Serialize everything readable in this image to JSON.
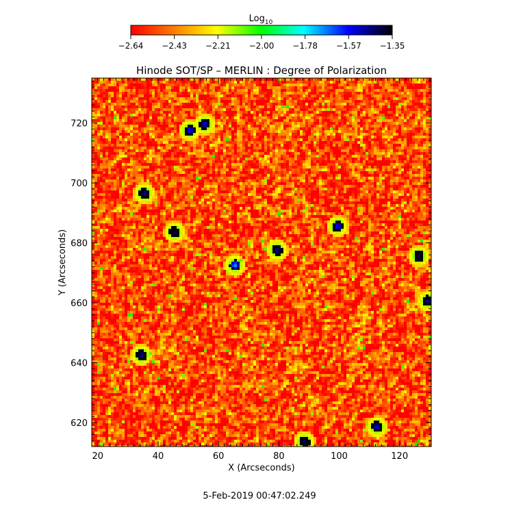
{
  "chart_data": {
    "type": "heatmap",
    "title": "Hinode SOT/SP – MERLIN : Degree of Polarization",
    "xlabel": "X (Arcseconds)",
    "ylabel": "Y (Arcseconds)",
    "footer": "5-Feb-2019 00:47:02.249",
    "xlim": [
      18,
      130.5
    ],
    "ylim": [
      612,
      735
    ],
    "xticks": [
      20,
      40,
      60,
      80,
      100,
      120
    ],
    "yticks": [
      620,
      640,
      660,
      680,
      700,
      720
    ],
    "colorbar": {
      "label": "Log",
      "label_sub": "10",
      "range": [
        -2.64,
        -1.35
      ],
      "ticks": [
        "-2.64",
        "-2.43",
        "-2.21",
        "-2.00",
        "-1.78",
        "-1.57",
        "-1.35"
      ],
      "colors": [
        "#ff0000",
        "#ff8000",
        "#ffff00",
        "#00ff00",
        "#00ffff",
        "#0000ff",
        "#000000"
      ]
    },
    "field": {
      "background_level": -2.52,
      "noise_amplitude": 0.22,
      "strong_features": [
        {
          "x": 35,
          "y": 697,
          "v": -1.5
        },
        {
          "x": 45,
          "y": 684,
          "v": -1.45
        },
        {
          "x": 55,
          "y": 720,
          "v": -1.55
        },
        {
          "x": 50,
          "y": 718,
          "v": -1.6
        },
        {
          "x": 79,
          "y": 678,
          "v": -1.5
        },
        {
          "x": 99,
          "y": 686,
          "v": -1.6
        },
        {
          "x": 126,
          "y": 676,
          "v": -1.45
        },
        {
          "x": 129,
          "y": 661,
          "v": -1.5
        },
        {
          "x": 34,
          "y": 643,
          "v": -1.5
        },
        {
          "x": 112,
          "y": 619,
          "v": -1.55
        },
        {
          "x": 88,
          "y": 614,
          "v": -1.45
        },
        {
          "x": 65,
          "y": 673,
          "v": -1.7
        }
      ]
    }
  }
}
